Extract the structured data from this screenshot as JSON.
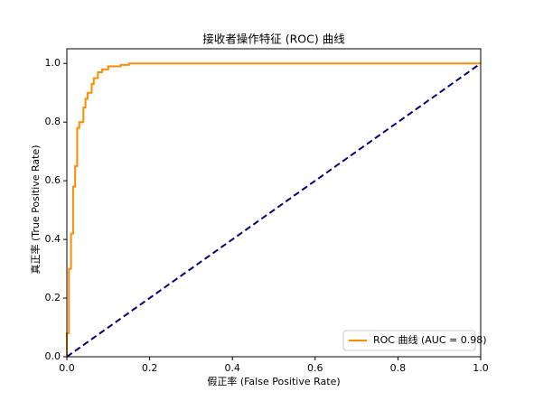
{
  "chart_data": {
    "type": "line",
    "title": "接收者操作特征 (ROC) 曲线",
    "x_label": "假正率 (False Positive Rate)",
    "y_label": "真正率 (True Positive Rate)",
    "xlim": [
      0,
      1
    ],
    "ylim": [
      0,
      1.05
    ],
    "xticks": [
      {
        "value": 0,
        "label": "0.0"
      },
      0.2,
      0.4,
      0.6,
      0.8,
      {
        "value": 1,
        "label": "1.0"
      }
    ],
    "yticks": [
      {
        "value": 0,
        "label": "0.0"
      },
      0.2,
      0.4,
      0.6,
      0.8,
      {
        "value": 1,
        "label": "1.0"
      }
    ],
    "legend": "lower right",
    "series": [
      {
        "name": "ROC 曲线 (AUC = 0.98)",
        "color": "#ff8c00",
        "dashed": false,
        "x": [
          0,
          0,
          0.005,
          0.005,
          0.01,
          0.01,
          0.015,
          0.015,
          0.02,
          0.02,
          0.025,
          0.025,
          0.03,
          0.03,
          0.04,
          0.04,
          0.045,
          0.045,
          0.05,
          0.05,
          0.06,
          0.06,
          0.065,
          0.065,
          0.075,
          0.075,
          0.085,
          0.085,
          0.1,
          0.1,
          0.13,
          0.13,
          0.15,
          0.15,
          1
        ],
        "values": [
          0,
          0.08,
          0.08,
          0.3,
          0.3,
          0.42,
          0.42,
          0.58,
          0.58,
          0.65,
          0.65,
          0.78,
          0.78,
          0.8,
          0.8,
          0.85,
          0.85,
          0.88,
          0.88,
          0.9,
          0.9,
          0.93,
          0.93,
          0.95,
          0.95,
          0.97,
          0.97,
          0.98,
          0.98,
          0.99,
          0.99,
          0.995,
          0.995,
          1,
          1
        ]
      },
      {
        "color": "#000080",
        "dashed": true,
        "x": [
          0,
          1
        ],
        "values": [
          0,
          1
        ]
      }
    ]
  }
}
